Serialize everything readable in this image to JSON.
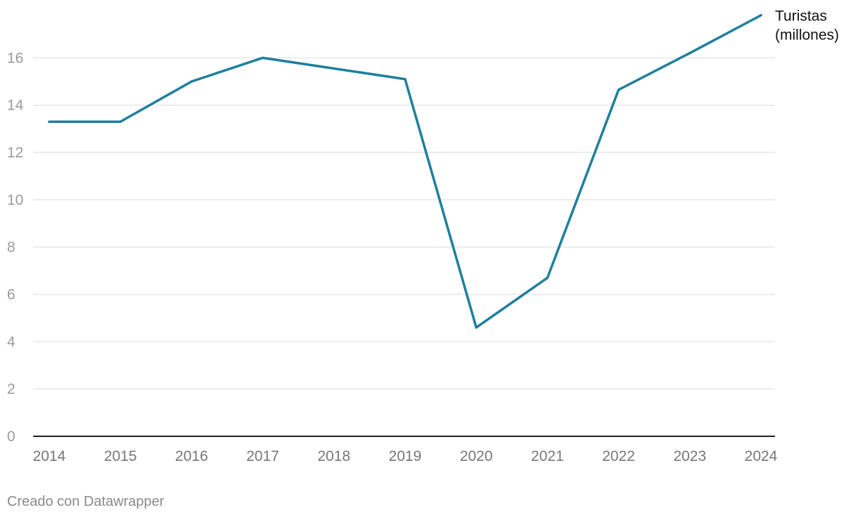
{
  "chart_data": {
    "type": "line",
    "title": "",
    "xlabel": "",
    "ylabel": "",
    "x": [
      "2014",
      "2015",
      "2016",
      "2017",
      "2018",
      "2019",
      "2020",
      "2021",
      "2022",
      "2023",
      "2024"
    ],
    "series": [
      {
        "name": "Turistas (millones)",
        "name_lines": [
          "Turistas",
          "(millones)"
        ],
        "color": "#1f7f9d",
        "values": [
          13.3,
          13.3,
          15.0,
          16.0,
          15.55,
          15.1,
          4.6,
          6.7,
          14.65,
          16.2,
          17.8
        ]
      }
    ],
    "ylim": [
      0,
      18
    ],
    "yticks": [
      0,
      2,
      4,
      6,
      8,
      10,
      12,
      14,
      16
    ],
    "grid": true,
    "legend": "line-end label"
  },
  "footer": {
    "credit": "Creado con Datawrapper"
  }
}
